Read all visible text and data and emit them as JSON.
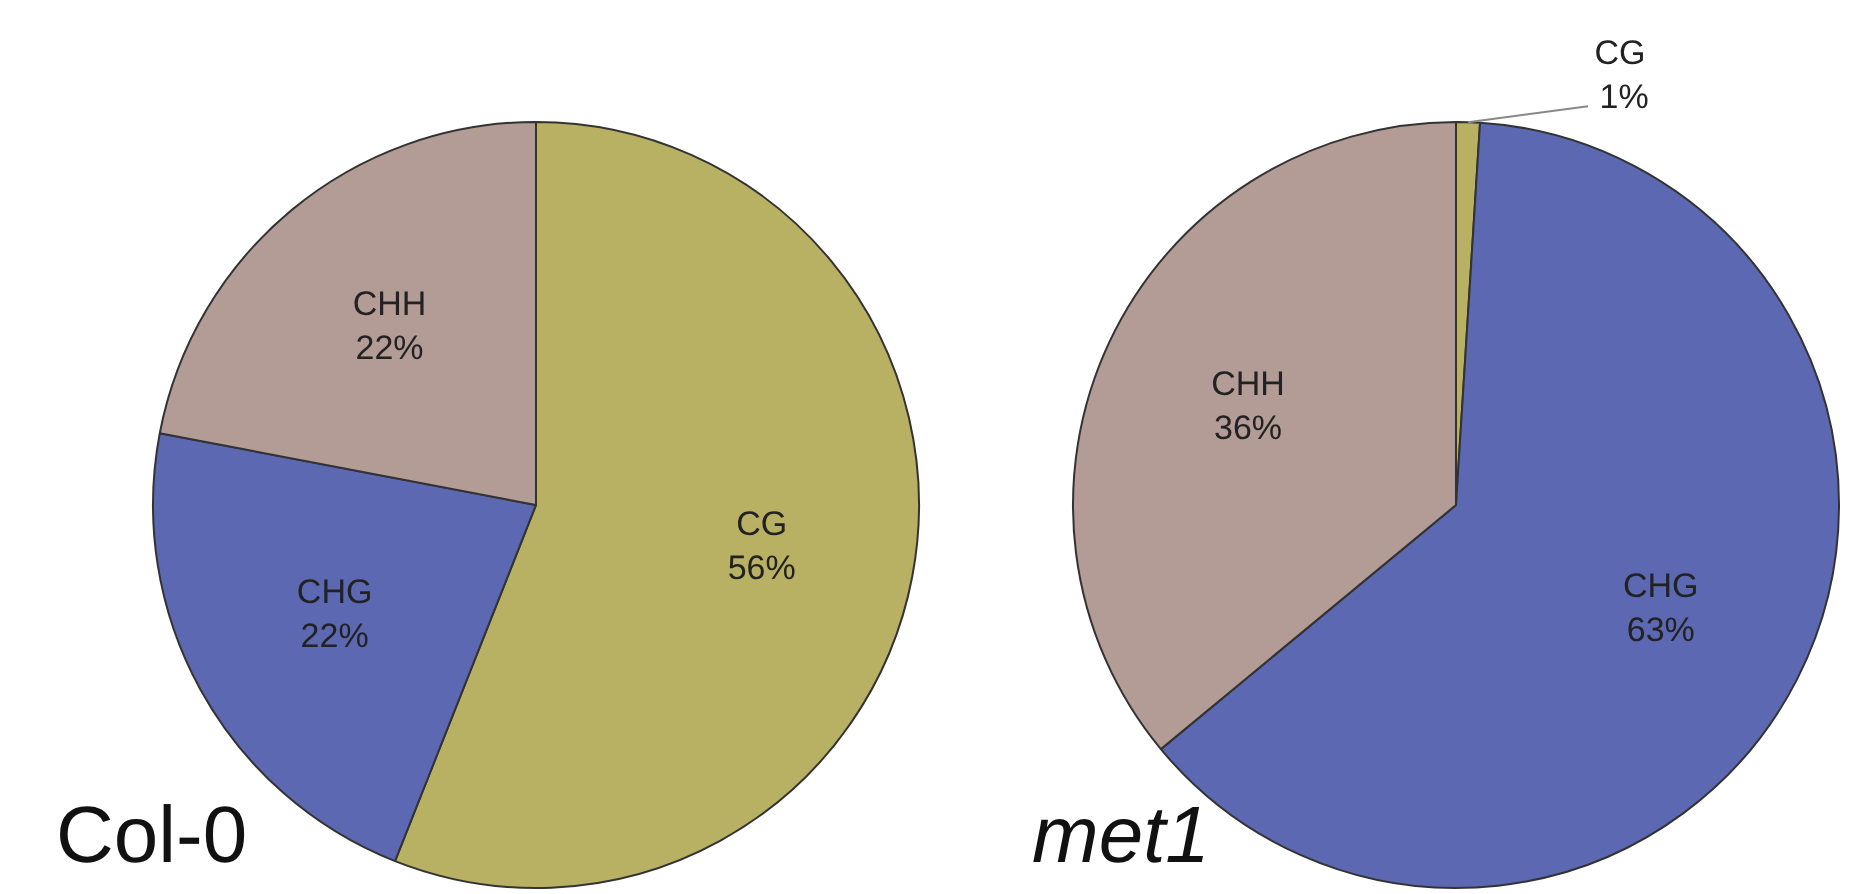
{
  "chart_data": [
    {
      "type": "pie",
      "title": "Col-0",
      "categories": [
        "CG",
        "CHG",
        "CHH"
      ],
      "values": [
        56,
        22,
        22
      ],
      "value_labels": [
        "56%",
        "22%",
        "22%"
      ],
      "colors": [
        "#b8b062",
        "#5c68b2",
        "#b39b96"
      ],
      "legend": false
    },
    {
      "type": "pie",
      "title": "met1",
      "categories": [
        "CG",
        "CHG",
        "CHH"
      ],
      "values": [
        1,
        63,
        36
      ],
      "value_labels": [
        "1%",
        "63%",
        "36%"
      ],
      "colors": [
        "#b8b062",
        "#5c68b2",
        "#b39b96"
      ],
      "legend": false
    }
  ]
}
